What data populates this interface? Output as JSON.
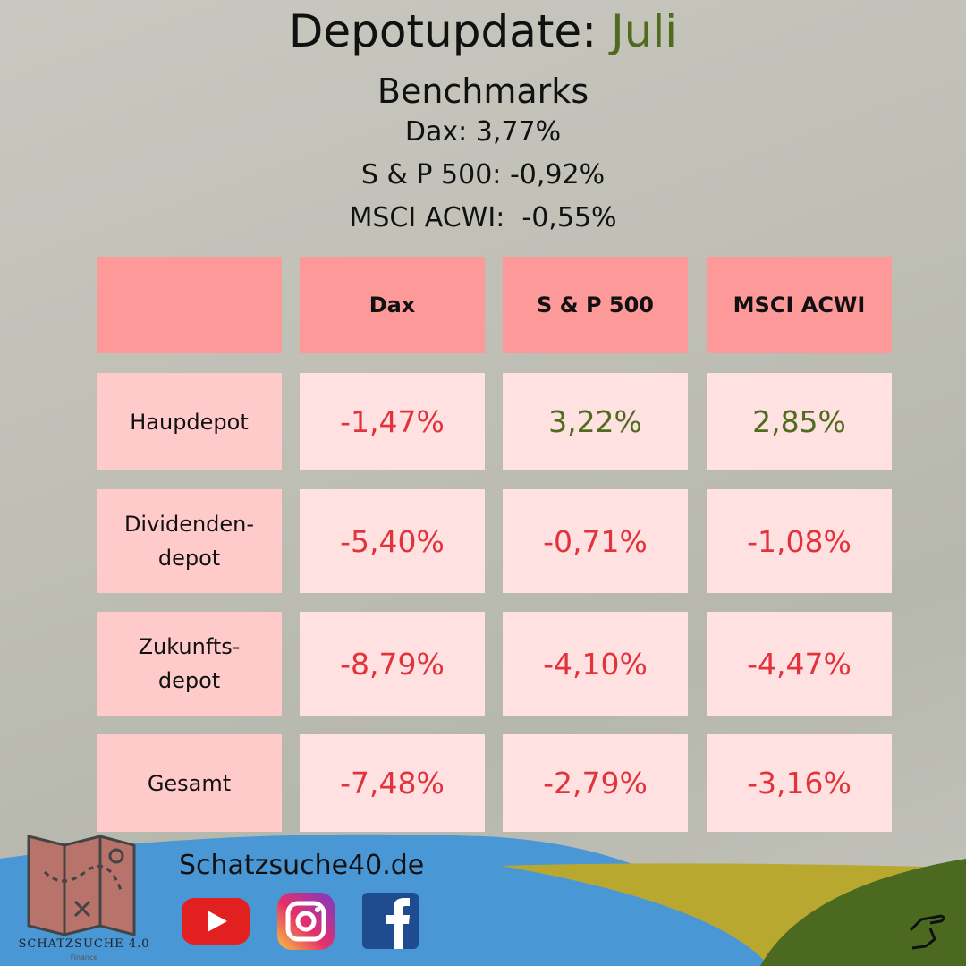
{
  "header": {
    "title": "Depotupdate:",
    "title_highlight": "Juli",
    "subtitle": "Benchmarks",
    "benchmarks": [
      "Dax: 3,77%",
      "S & P 500: -0,92%",
      "MSCI ACWI:  -0,55%"
    ]
  },
  "table": {
    "columns": [
      "Dax",
      "S & P 500",
      "MSCI ACWI"
    ],
    "rows": [
      {
        "label": [
          "Haupdepot"
        ],
        "values": [
          "-1,47%",
          "3,22%",
          "2,85%"
        ]
      },
      {
        "label": [
          "Dividenden-",
          "depot"
        ],
        "values": [
          "-5,40%",
          "-0,71%",
          "-1,08%"
        ]
      },
      {
        "label": [
          "Zukunfts-",
          "depot"
        ],
        "values": [
          "-8,79%",
          "-4,10%",
          "-4,47%"
        ]
      },
      {
        "label": [
          "Gesamt"
        ],
        "values": [
          "-7,48%",
          "-2,79%",
          "-3,16%"
        ]
      }
    ]
  },
  "footer": {
    "website": "Schatzsuche40.de",
    "logo": "SCHATZSUCHE 4.0",
    "logo_sub": "Finance"
  }
}
